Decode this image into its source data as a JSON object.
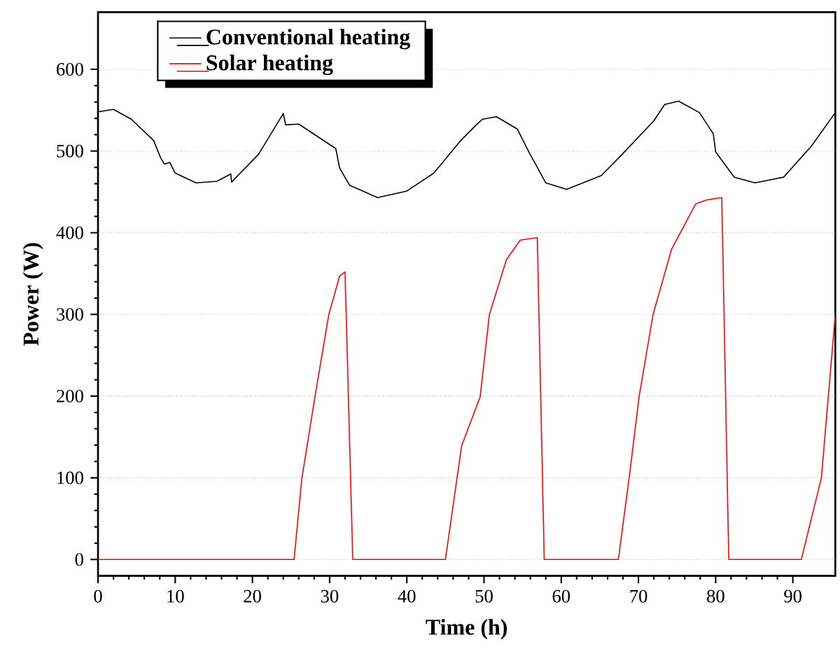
{
  "chart_data": {
    "type": "line",
    "xlabel": "Time (h)",
    "ylabel": "Power (W)",
    "xlim": [
      0,
      95.5
    ],
    "ylim": [
      -20,
      670
    ],
    "xticks": [
      0,
      10,
      20,
      30,
      40,
      50,
      60,
      70,
      80,
      90
    ],
    "yticks": [
      0,
      100,
      200,
      300,
      400,
      500,
      600
    ],
    "grid": "y",
    "legend": "top left",
    "marker": "none",
    "series": [
      {
        "name": "Conventional heating",
        "color": "#000000",
        "x": [
          0,
          2,
          4.3,
          7.2,
          8.1,
          8.6,
          9.3,
          10,
          12.7,
          15.4,
          17.2,
          17.3,
          20.8,
          24,
          24.3,
          26,
          30.8,
          31.3,
          32.6,
          36.2,
          40,
          43.5,
          47,
          49,
          49.8,
          51.6,
          54.3,
          55.8,
          58,
          60.7,
          65.2,
          67.9,
          72,
          73.4,
          75.2,
          77.9,
          79.7,
          80,
          82.4,
          85.1,
          88.8,
          92.4,
          95.5
        ],
        "values": [
          548,
          551,
          539,
          513,
          492,
          484,
          486,
          473,
          461,
          463,
          472,
          462,
          496,
          546,
          532,
          533,
          503,
          479,
          458,
          443,
          451,
          473,
          513,
          532,
          539,
          542,
          527,
          499,
          461,
          453,
          470,
          496,
          537,
          557,
          561,
          547,
          521,
          499,
          468,
          461,
          468,
          506,
          547
        ]
      },
      {
        "name": "Solar heating",
        "color": "#ff0000",
        "x": [
          0,
          25.4,
          26.4,
          28.1,
          29.9,
          31.3,
          32,
          33,
          45,
          47.1,
          49.5,
          50.7,
          52.9,
          54.7,
          56.9,
          57.8,
          67.4,
          68.8,
          70.1,
          71.9,
          74.3,
          77.4,
          78.8,
          80.8,
          81.7,
          91.1,
          93.7,
          95.5
        ],
        "values": [
          0,
          0,
          99,
          199,
          300,
          347,
          352,
          0,
          0,
          139,
          199,
          300,
          367,
          391,
          394,
          0,
          0,
          100,
          200,
          300,
          380,
          435,
          440,
          443,
          0,
          0,
          100,
          300
        ]
      }
    ]
  }
}
